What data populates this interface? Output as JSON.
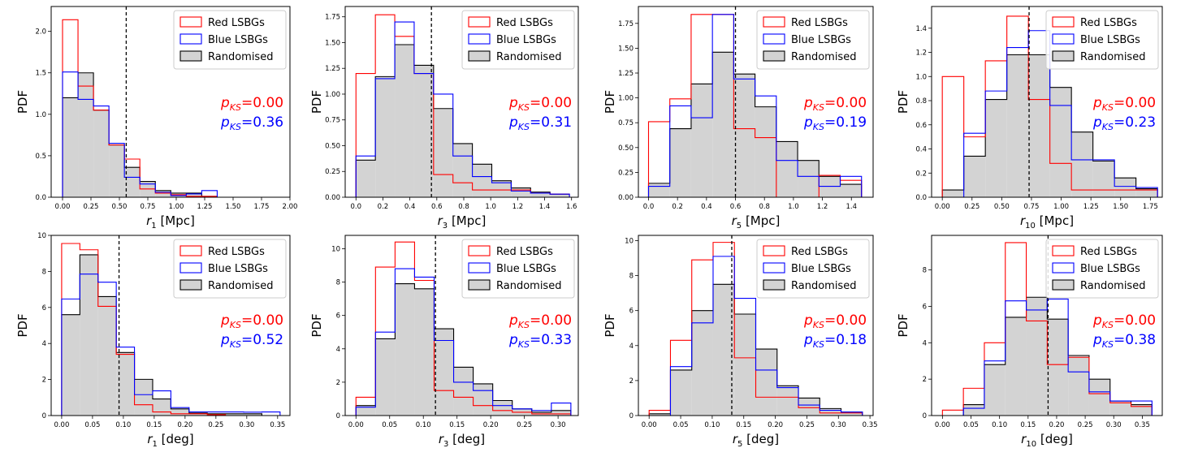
{
  "figure": {
    "colors": {
      "red": "#ff0000",
      "blue": "#0000ff",
      "black": "#000000",
      "fill": "#d3d3d3"
    },
    "legend_labels": [
      "Red LSBGs",
      "Blue LSBGs",
      "Randomised"
    ],
    "ks_prefix": "p",
    "ks_sub": "KS",
    "ylabel": "PDF"
  },
  "chart_data": [
    {
      "type": "histogram",
      "var": "r",
      "sub": "1",
      "unit": "[Mpc]",
      "xlim": [
        -0.1,
        2.0
      ],
      "ylim": [
        0,
        2.3
      ],
      "xticks": [
        "0.00",
        "0.25",
        "0.50",
        "0.75",
        "1.00",
        "1.25",
        "1.50",
        "1.75",
        "2.00"
      ],
      "yticks": [
        "0.0",
        "0.5",
        "1.0",
        "1.5",
        "2.0"
      ],
      "edges": [
        0.0,
        0.262,
        0.524,
        0.786,
        1.048,
        1.31,
        1.572,
        1.834,
        2.096
      ],
      "bins": [
        0.0,
        0.136,
        0.272,
        0.408,
        0.544,
        0.68,
        0.816,
        0.952,
        1.088,
        1.224,
        1.36,
        1.496,
        1.632,
        1.768,
        1.904
      ],
      "vline": 0.56,
      "red": [
        2.14,
        1.34,
        1.05,
        0.63,
        0.46,
        0.1,
        0.05,
        0.03,
        0.01,
        0.01,
        0.0,
        0.0,
        0.0,
        0.0
      ],
      "blue": [
        1.51,
        1.18,
        1.1,
        0.65,
        0.24,
        0.16,
        0.06,
        0.02,
        0.04,
        0.08,
        0.0,
        0.0,
        0.0,
        0.0
      ],
      "random": [
        1.2,
        1.5,
        1.05,
        0.63,
        0.36,
        0.19,
        0.08,
        0.05,
        0.05,
        0.01,
        0.0,
        0.0,
        0.0,
        0.0
      ],
      "ks_red": "=0.00",
      "ks_blue": "=0.36"
    },
    {
      "type": "histogram",
      "var": "r",
      "sub": "3",
      "unit": "[Mpc]",
      "xlim": [
        -0.08,
        1.65
      ],
      "ylim": [
        0,
        1.85
      ],
      "xticks": [
        "0.0",
        "0.2",
        "0.4",
        "0.6",
        "0.8",
        "1.0",
        "1.2",
        "1.4",
        "1.6"
      ],
      "yticks": [
        "0.00",
        "0.25",
        "0.50",
        "0.75",
        "1.00",
        "1.25",
        "1.50",
        "1.75"
      ],
      "bins": [
        0.0,
        0.144,
        0.288,
        0.432,
        0.576,
        0.72,
        0.864,
        1.008,
        1.152,
        1.296,
        1.44,
        1.584
      ],
      "vline": 0.56,
      "red": [
        1.2,
        1.77,
        1.56,
        1.2,
        0.22,
        0.14,
        0.07,
        0.07,
        0.07,
        0.04,
        0.03
      ],
      "blue": [
        0.4,
        1.15,
        1.7,
        1.2,
        1.0,
        0.4,
        0.2,
        0.14,
        0.06,
        0.04,
        0.03
      ],
      "random": [
        0.36,
        1.17,
        1.48,
        1.28,
        0.86,
        0.52,
        0.32,
        0.16,
        0.09,
        0.05,
        0.03
      ],
      "ks_red": "=0.00",
      "ks_blue": "=0.31"
    },
    {
      "type": "histogram",
      "var": "r",
      "sub": "5",
      "unit": "[Mpc]",
      "xlim": [
        -0.07,
        1.55
      ],
      "ylim": [
        0,
        1.92
      ],
      "xticks": [
        "0.0",
        "0.2",
        "0.4",
        "0.6",
        "0.8",
        "1.0",
        "1.2",
        "1.4"
      ],
      "yticks": [
        "0.00",
        "0.25",
        "0.50",
        "0.75",
        "1.00",
        "1.25",
        "1.50",
        "1.75"
      ],
      "bins": [
        0.0,
        0.147,
        0.294,
        0.441,
        0.588,
        0.735,
        0.882,
        1.029,
        1.176,
        1.323,
        1.47
      ],
      "vline": 0.6,
      "red": [
        0.76,
        0.99,
        1.84,
        1.84,
        0.69,
        0.6,
        0.0,
        0.0,
        0.22,
        0.17
      ],
      "blue": [
        0.11,
        0.92,
        0.8,
        1.84,
        1.19,
        1.02,
        0.37,
        0.21,
        0.11,
        0.21
      ],
      "random": [
        0.14,
        0.69,
        1.14,
        1.46,
        1.24,
        0.91,
        0.56,
        0.37,
        0.21,
        0.13
      ],
      "ks_red": "=0.00",
      "ks_blue": "=0.19"
    },
    {
      "type": "histogram",
      "var": "r",
      "sub": "10",
      "unit": "[Mpc]",
      "xlim": [
        -0.09,
        1.85
      ],
      "ylim": [
        0,
        1.58
      ],
      "xticks": [
        "0.00",
        "0.25",
        "0.50",
        "0.75",
        "1.00",
        "1.25",
        "1.50",
        "1.75"
      ],
      "yticks": [
        "0.0",
        "0.2",
        "0.4",
        "0.6",
        "0.8",
        "1.0",
        "1.2",
        "1.4"
      ],
      "bins": [
        0.0,
        0.181,
        0.362,
        0.543,
        0.724,
        0.905,
        1.086,
        1.267,
        1.448,
        1.629,
        1.81
      ],
      "vline": 0.73,
      "red": [
        1.0,
        0.5,
        1.13,
        1.5,
        0.81,
        0.28,
        0.06,
        0.06,
        0.06,
        0.06
      ],
      "blue": [
        0.0,
        0.53,
        0.88,
        1.24,
        1.38,
        0.76,
        0.31,
        0.31,
        0.09,
        0.08
      ],
      "random": [
        0.06,
        0.34,
        0.81,
        1.18,
        1.18,
        0.91,
        0.54,
        0.3,
        0.16,
        0.07
      ],
      "ks_red": "=0.00",
      "ks_blue": "=0.23"
    },
    {
      "type": "histogram",
      "var": "r",
      "sub": "1",
      "unit": "[deg]",
      "xlim": [
        -0.017,
        0.37
      ],
      "ylim": [
        0,
        10.0
      ],
      "xticks": [
        "0.00",
        "0.05",
        "0.10",
        "0.15",
        "0.20",
        "0.25",
        "0.30",
        "0.35"
      ],
      "yticks": [
        "0",
        "2",
        "4",
        "6",
        "8",
        "10"
      ],
      "bins": [
        0.0,
        0.0295,
        0.059,
        0.0885,
        0.118,
        0.1475,
        0.177,
        0.2065,
        0.236,
        0.2655,
        0.295,
        0.3245,
        0.354
      ],
      "vline": 0.093,
      "red": [
        9.55,
        9.2,
        6.06,
        3.4,
        0.6,
        0.2,
        0.1,
        0.1,
        0.05,
        0.0,
        0.0,
        0.0
      ],
      "blue": [
        6.47,
        7.85,
        7.4,
        3.8,
        1.16,
        1.37,
        0.44,
        0.2,
        0.2,
        0.2,
        0.19,
        0.2
      ],
      "random": [
        5.6,
        8.92,
        6.6,
        3.5,
        2.01,
        0.92,
        0.37,
        0.14,
        0.1,
        0.1,
        0.1,
        0.0
      ],
      "ks_red": "=0.00",
      "ks_blue": "=0.52"
    },
    {
      "type": "histogram",
      "var": "r",
      "sub": "3",
      "unit": "[deg]",
      "xlim": [
        -0.016,
        0.33
      ],
      "ylim": [
        0,
        10.8
      ],
      "xticks": [
        "0.00",
        "0.05",
        "0.10",
        "0.15",
        "0.20",
        "0.25",
        "0.30"
      ],
      "yticks": [
        "0",
        "2",
        "4",
        "6",
        "8",
        "10"
      ],
      "bins": [
        0.0,
        0.029,
        0.058,
        0.087,
        0.116,
        0.145,
        0.174,
        0.203,
        0.232,
        0.261,
        0.29,
        0.319
      ],
      "vline": 0.118,
      "red": [
        1.1,
        8.9,
        10.4,
        8.1,
        1.5,
        1.1,
        0.6,
        0.3,
        0.2,
        0.1,
        0.1
      ],
      "blue": [
        0.5,
        5.0,
        8.8,
        8.3,
        4.5,
        2.0,
        1.5,
        0.6,
        0.4,
        0.3,
        0.75
      ],
      "random": [
        0.6,
        4.6,
        7.9,
        7.6,
        5.2,
        2.9,
        1.9,
        0.9,
        0.4,
        0.2,
        0.3
      ],
      "ks_red": "=0.00",
      "ks_blue": "=0.33"
    },
    {
      "type": "histogram",
      "var": "r",
      "sub": "5",
      "unit": "[deg]",
      "xlim": [
        -0.017,
        0.355
      ],
      "ylim": [
        0,
        10.3
      ],
      "xticks": [
        "0.00",
        "0.05",
        "0.10",
        "0.15",
        "0.20",
        "0.25",
        "0.30",
        "0.35"
      ],
      "yticks": [
        "0",
        "2",
        "4",
        "6",
        "8",
        "10"
      ],
      "bins": [
        0.0,
        0.0338,
        0.0676,
        0.1014,
        0.1352,
        0.169,
        0.2028,
        0.2366,
        0.2704,
        0.3042,
        0.338
      ],
      "vline": 0.131,
      "red": [
        0.3,
        4.3,
        8.9,
        9.9,
        3.3,
        1.05,
        1.05,
        0.45,
        0.15,
        0.15
      ],
      "blue": [
        0.0,
        2.8,
        5.3,
        9.1,
        6.7,
        2.6,
        1.6,
        0.6,
        0.3,
        0.2
      ],
      "random": [
        0.1,
        2.6,
        6.0,
        7.5,
        5.8,
        3.8,
        1.7,
        1.0,
        0.4,
        0.2
      ],
      "ks_red": "=0.00",
      "ks_blue": "=0.18"
    },
    {
      "type": "histogram",
      "var": "r",
      "sub": "10",
      "unit": "[deg]",
      "xlim": [
        -0.019,
        0.385
      ],
      "ylim": [
        0,
        9.9
      ],
      "xticks": [
        "0.00",
        "0.05",
        "0.10",
        "0.15",
        "0.20",
        "0.25",
        "0.30",
        "0.35"
      ],
      "yticks": [
        "0",
        "2",
        "4",
        "6",
        "8"
      ],
      "bins": [
        0.0,
        0.0367,
        0.0734,
        0.1101,
        0.1468,
        0.1835,
        0.2202,
        0.2569,
        0.2936,
        0.3303,
        0.367
      ],
      "vline": 0.185,
      "red": [
        0.3,
        1.5,
        4.0,
        9.5,
        5.2,
        2.8,
        3.2,
        1.2,
        0.7,
        0.5
      ],
      "blue": [
        0.0,
        0.4,
        3.0,
        6.3,
        5.8,
        6.4,
        2.4,
        1.3,
        0.8,
        0.8
      ],
      "random": [
        0.0,
        0.6,
        2.8,
        5.4,
        6.5,
        5.3,
        3.3,
        2.0,
        0.8,
        0.6
      ],
      "ks_red": "=0.00",
      "ks_blue": "=0.38"
    }
  ]
}
